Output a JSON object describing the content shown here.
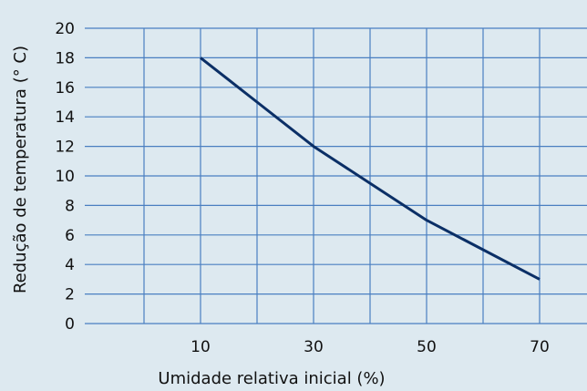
{
  "chart_data": {
    "type": "line",
    "title": "",
    "xlabel": "Umidade relativa inicial (%)",
    "ylabel": "Redução de temperatura (° C)",
    "x_ticks": [
      10,
      30,
      50,
      70
    ],
    "y_ticks": [
      0,
      2,
      4,
      6,
      8,
      10,
      12,
      14,
      16,
      18,
      20
    ],
    "xlim": [
      -10,
      75
    ],
    "ylim": [
      0,
      20
    ],
    "grid": true,
    "legend": "none",
    "series": [
      {
        "x": [
          10,
          20,
          30,
          40,
          50,
          60,
          70
        ],
        "y": [
          18,
          15,
          12,
          9.5,
          7,
          5,
          3
        ]
      }
    ]
  },
  "colors": {
    "background": "#dde9f0",
    "grid": "#4a7fc1",
    "line": "#0b2f66",
    "text": "#111111"
  }
}
